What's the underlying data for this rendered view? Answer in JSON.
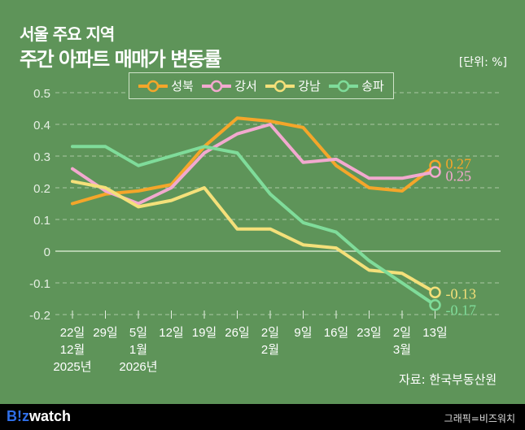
{
  "header": {
    "subtitle": "서울 주요 지역",
    "title": "주간 아파트 매매가 변동률",
    "unit": "[단위: %]"
  },
  "source": "자료: 한국부동산원",
  "footer": {
    "logo_b": "B!z",
    "logo_w": "watch",
    "credit": "그래픽=비즈워치"
  },
  "chart_data": {
    "type": "line",
    "title": "서울 주요 지역 주간 아파트 매매가 변동률",
    "ylabel": "%",
    "ylim": [
      -0.2,
      0.5
    ],
    "yticks": [
      0.5,
      0.4,
      0.3,
      0.2,
      0.1,
      0,
      -0.1,
      -0.2
    ],
    "ytick_labels": [
      "0.5",
      "0.4",
      "0.3",
      "0.2",
      "0.1",
      "0",
      "-0.1",
      "-0.2"
    ],
    "grid": true,
    "legend": "top-center",
    "x": [
      [
        "22일",
        "12월",
        "2025년"
      ],
      [
        "29일",
        "",
        ""
      ],
      [
        "5일",
        "1월",
        "2026년"
      ],
      [
        "12일",
        "",
        ""
      ],
      [
        "19일",
        "",
        ""
      ],
      [
        "26일",
        "",
        ""
      ],
      [
        "2일",
        "2월",
        ""
      ],
      [
        "9일",
        "",
        ""
      ],
      [
        "16일",
        "",
        ""
      ],
      [
        "23일",
        "",
        ""
      ],
      [
        "2일",
        "3월",
        ""
      ],
      [
        "13일",
        "",
        ""
      ]
    ],
    "series": [
      {
        "name": "성북",
        "color": "#f4a62a",
        "values": [
          0.15,
          0.18,
          0.19,
          0.21,
          0.33,
          0.42,
          0.41,
          0.39,
          0.27,
          0.2,
          0.19,
          0.27
        ],
        "end_label": "0.27"
      },
      {
        "name": "강서",
        "color": "#f2a9cf",
        "values": [
          0.26,
          0.19,
          0.15,
          0.2,
          0.31,
          0.37,
          0.4,
          0.28,
          0.29,
          0.23,
          0.23,
          0.25
        ],
        "end_label": "0.25"
      },
      {
        "name": "강남",
        "color": "#f4e07a",
        "values": [
          0.22,
          0.2,
          0.14,
          0.16,
          0.2,
          0.07,
          0.07,
          0.02,
          0.01,
          -0.06,
          -0.07,
          -0.13
        ],
        "end_label": "-0.13"
      },
      {
        "name": "송파",
        "color": "#7fdc9a",
        "values": [
          0.33,
          0.33,
          0.27,
          0.3,
          0.33,
          0.31,
          0.18,
          0.09,
          0.06,
          -0.03,
          -0.1,
          -0.17
        ],
        "end_label": "-0.17"
      }
    ]
  }
}
